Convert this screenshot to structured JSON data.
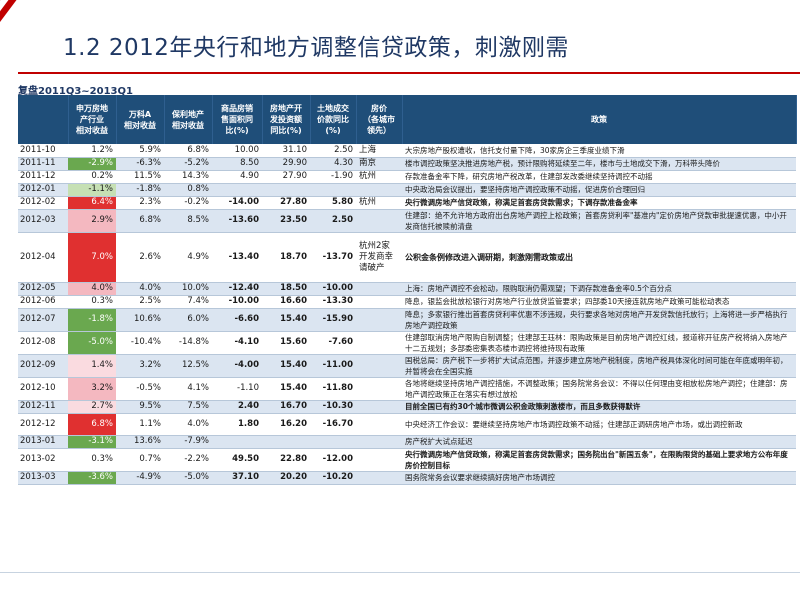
{
  "slide": {
    "title": "1.2 2012年央行和地方调整信贷政策，刺激刚需",
    "subtitle": "复盘2011Q3~2013Q1",
    "watermark": "www.baocai.com"
  },
  "colors": {
    "accent": "#c00000",
    "title_text": "#1f3864",
    "header_bg": "#1f4e79",
    "row_alt_bg": "#dbe5f1",
    "green_cell": "#6aa84f",
    "lightgreen_cell": "#c6e0b4",
    "red_cell": "#e03030",
    "pink_cell": "#f4b8c0"
  },
  "table": {
    "headers": [
      "",
      "申万房地\n产行业\n相对收益",
      "万科A\n相对收益",
      "保利地产\n相对收益",
      "商品房销\n售面积同\n比(%)",
      "房地产开\n发投资额\n同比(%)",
      "土地成交\n价款同比\n(%)",
      "房价\n（各城市\n领先）",
      "政策"
    ],
    "rows": [
      {
        "date": "2011-10",
        "sw": "1.2%",
        "sw_tone": "",
        "wk": "5.9%",
        "bl": "6.8%",
        "sales": "10.00",
        "invest": "31.10",
        "land": "2.50",
        "city": "上海",
        "policy": "大宗房地产股权遭收，信托支付量下降，30家房企三季度业绩下滑",
        "emph": ""
      },
      {
        "date": "2011-11",
        "sw": "-2.9%",
        "sw_tone": "green",
        "wk": "-6.3%",
        "bl": "-5.2%",
        "sales": "8.50",
        "invest": "29.90",
        "land": "4.30",
        "city": "南京",
        "policy": "楼市调控政策坚决推进房地产税，预计限购将延续至二年，楼市与土地成交下滑，万科带头降价",
        "emph": ""
      },
      {
        "date": "2011-12",
        "sw": "0.2%",
        "sw_tone": "",
        "wk": "11.5%",
        "bl": "14.3%",
        "sales": "4.90",
        "invest": "27.90",
        "land": "-1.90",
        "city": "杭州",
        "policy": "存款准备金率下降，研究房地产税改革，住建部发改委继续坚持调控不动摇",
        "emph": ""
      },
      {
        "date": "2012-01",
        "sw": "-1.1%",
        "sw_tone": "lightgreen",
        "wk": "-1.8%",
        "bl": "0.8%",
        "sales": "",
        "invest": "",
        "land": "",
        "city": "",
        "policy": "中央政治局会议提出，要坚持房地产调控政策不动摇，促进房价合理回归",
        "emph": ""
      },
      {
        "date": "2012-02",
        "sw": "6.4%",
        "sw_tone": "red",
        "wk": "2.3%",
        "bl": "-0.2%",
        "sales": "-14.00",
        "invest": "27.80",
        "land": "5.80",
        "city": "杭州",
        "policy": "央行微调房地产信贷政策，称满足首套房贷款需求；下调存款准备金率",
        "emph": "bold"
      },
      {
        "date": "2012-03",
        "sw": "2.9%",
        "sw_tone": "pink",
        "wk": "6.8%",
        "bl": "8.5%",
        "sales": "-13.60",
        "invest": "23.50",
        "land": "2.50",
        "city": "",
        "policy": "住建部：绝不允许地方政府出台房地产调控上松政策；首套房贷利率\"基准内\"定价房地产贷款审批提速优惠，中小开发商信托被赎前清盘",
        "emph": ""
      },
      {
        "date": "2012-04",
        "sw": "7.0%",
        "sw_tone": "red",
        "wk": "2.6%",
        "bl": "4.9%",
        "sales": "-13.40",
        "invest": "18.70",
        "land": "-13.70",
        "city": "杭州2家\n开发商幸\n请破产",
        "policy": "公积金条例修改进入调研期，刺激刚需政策或出",
        "emph": "hl"
      },
      {
        "date": "2012-05",
        "sw": "4.0%",
        "sw_tone": "pink",
        "wk": "4.0%",
        "bl": "10.0%",
        "sales": "-12.40",
        "invest": "18.50",
        "land": "-10.00",
        "city": "",
        "policy": "上海：房地产调控不会松动，限购取消仍需观望；下调存款准备金率0.5个百分点",
        "emph": ""
      },
      {
        "date": "2012-06",
        "sw": "0.3%",
        "sw_tone": "",
        "wk": "2.5%",
        "bl": "7.4%",
        "sales": "-10.00",
        "invest": "16.60",
        "land": "-13.30",
        "city": "",
        "policy": "降息，银监会批放松银行对房地产行业放贷监管要求；四部委10天接连就房地产政策可能松动表态",
        "emph": ""
      },
      {
        "date": "2012-07",
        "sw": "-1.8%",
        "sw_tone": "green",
        "wk": "10.6%",
        "bl": "6.0%",
        "sales": "-6.60",
        "invest": "15.40",
        "land": "-15.90",
        "city": "",
        "policy": "降息；多家银行推出首套房贷利率优惠不涉违规，央行要求各地对房地产开发贷款信托放行；上海将进一步严格执行房地产调控政策",
        "emph": ""
      },
      {
        "date": "2012-08",
        "sw": "-5.0%",
        "sw_tone": "green",
        "wk": "-10.4%",
        "bl": "-14.8%",
        "sales": "-4.10",
        "invest": "15.60",
        "land": "-7.60",
        "city": "",
        "policy": "住建部取消房地产限购自制调整；住建部王珏林：限购政策是目前房地产调控红线，报道称开征房产税将纳入房地产十二五规划；多部委密集表态楼市调控将维持现有政策",
        "emph": ""
      },
      {
        "date": "2012-09",
        "sw": "1.4%",
        "sw_tone": "pinklight",
        "wk": "3.2%",
        "bl": "12.5%",
        "sales": "-4.00",
        "invest": "15.40",
        "land": "-11.00",
        "city": "",
        "policy": "国税总局：房产税下一步将扩大试点范围，并逐步建立房地产税制度，房地产税具体深化时间可能在年底或明年初，并暂将会在全国实施",
        "emph": ""
      },
      {
        "date": "2012-10",
        "sw": "3.2%",
        "sw_tone": "pink",
        "wk": "-0.5%",
        "bl": "4.1%",
        "sales": "-1.10",
        "invest": "15.40",
        "land": "-11.80",
        "city": "",
        "policy": "各地将继续坚持房地产调控措施，不调整政策；国务院常务会议：不得以任何理由变相放松房地产调控；住建部：房地产调控政策正在落实有想过放松",
        "emph": ""
      },
      {
        "date": "2012-11",
        "sw": "2.7%",
        "sw_tone": "pinklight",
        "wk": "9.5%",
        "bl": "7.5%",
        "sales": "2.40",
        "invest": "16.70",
        "land": "-10.30",
        "city": "",
        "policy": "目前全国已有约30个城市微调公积金政策刺激楼市，而且多数获得默许",
        "emph": "bold"
      },
      {
        "date": "2012-12",
        "sw": "6.8%",
        "sw_tone": "red",
        "wk": "1.1%",
        "bl": "4.0%",
        "sales": "1.80",
        "invest": "16.20",
        "land": "-16.70",
        "city": "",
        "policy": "中央经济工作会议：要继续坚持房地产市场调控政策不动摇；住建部正调研房地产市场，或出调控新政",
        "emph": ""
      },
      {
        "date": "2013-01",
        "sw": "-3.1%",
        "sw_tone": "green",
        "wk": "13.6%",
        "bl": "-7.9%",
        "sales": "",
        "invest": "",
        "land": "",
        "city": "",
        "policy": "房产税扩大试点延迟",
        "emph": ""
      },
      {
        "date": "2013-02",
        "sw": "0.3%",
        "sw_tone": "",
        "wk": "0.7%",
        "bl": "-2.2%",
        "sales": "49.50",
        "invest": "22.80",
        "land": "-12.00",
        "city": "",
        "policy": "央行微调房地产信贷政策，称满足首套房贷款需求；国务院出台\"新国五条\"，在限购限贷的基础上要求地方公布年度房价控制目标",
        "emph": "bold"
      },
      {
        "date": "2013-03",
        "sw": "-3.6%",
        "sw_tone": "green",
        "wk": "-4.9%",
        "bl": "-5.0%",
        "sales": "37.10",
        "invest": "20.20",
        "land": "-10.20",
        "city": "",
        "policy": "国务院常务会议要求继续搞好房地产市场调控",
        "emph": ""
      }
    ]
  }
}
